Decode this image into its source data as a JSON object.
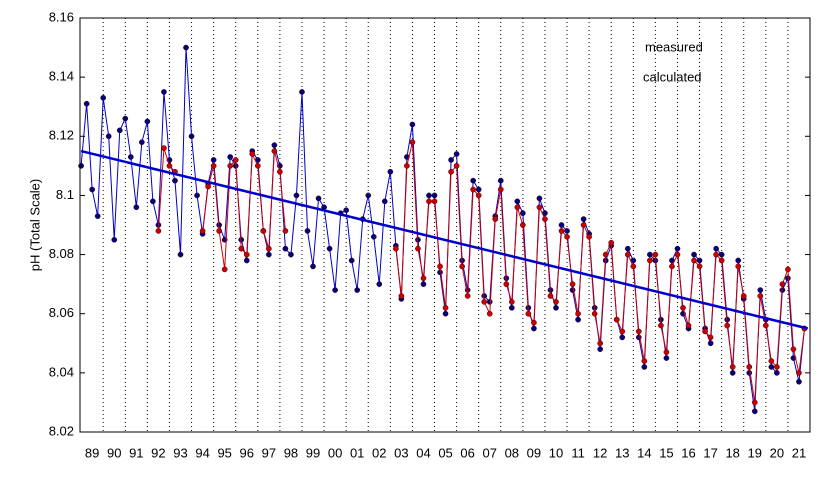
{
  "chart_data": {
    "type": "line",
    "ylabel": "pH (Total Scale)",
    "xlim": [
      1988.95,
      2022.0
    ],
    "ylim": [
      8.02,
      8.16
    ],
    "yticks": [
      8.02,
      8.04,
      8.06,
      8.08,
      8.1,
      8.12,
      8.14,
      8.16
    ],
    "xticks": [
      {
        "value": 1989.5,
        "label": "89"
      },
      {
        "value": 1990.5,
        "label": "90"
      },
      {
        "value": 1991.5,
        "label": "91"
      },
      {
        "value": 1992.5,
        "label": "92"
      },
      {
        "value": 1993.5,
        "label": "93"
      },
      {
        "value": 1994.5,
        "label": "94"
      },
      {
        "value": 1995.5,
        "label": "95"
      },
      {
        "value": 1996.5,
        "label": "96"
      },
      {
        "value": 1997.5,
        "label": "97"
      },
      {
        "value": 1998.5,
        "label": "98"
      },
      {
        "value": 1999.5,
        "label": "99"
      },
      {
        "value": 2000.5,
        "label": "00"
      },
      {
        "value": 2001.5,
        "label": "01"
      },
      {
        "value": 2002.5,
        "label": "02"
      },
      {
        "value": 2003.5,
        "label": "03"
      },
      {
        "value": 2004.5,
        "label": "04"
      },
      {
        "value": 2005.5,
        "label": "05"
      },
      {
        "value": 2006.5,
        "label": "06"
      },
      {
        "value": 2007.5,
        "label": "07"
      },
      {
        "value": 2008.5,
        "label": "08"
      },
      {
        "value": 2009.5,
        "label": "09"
      },
      {
        "value": 2010.5,
        "label": "10"
      },
      {
        "value": 2011.5,
        "label": "11"
      },
      {
        "value": 2012.5,
        "label": "12"
      },
      {
        "value": 2013.5,
        "label": "13"
      },
      {
        "value": 2014.5,
        "label": "14"
      },
      {
        "value": 2015.5,
        "label": "15"
      },
      {
        "value": 2016.5,
        "label": "16"
      },
      {
        "value": 2017.5,
        "label": "17"
      },
      {
        "value": 2018.5,
        "label": "18"
      },
      {
        "value": 2019.5,
        "label": "19"
      },
      {
        "value": 2020.5,
        "label": "20"
      },
      {
        "value": 2021.5,
        "label": "21"
      }
    ],
    "grid": true,
    "x": [
      1989,
      1989.25,
      1989.5,
      1989.75,
      1990,
      1990.25,
      1990.5,
      1990.75,
      1991,
      1991.25,
      1991.5,
      1991.75,
      1992,
      1992.25,
      1992.5,
      1992.75,
      1993,
      1993.25,
      1993.5,
      1993.75,
      1994,
      1994.25,
      1994.5,
      1994.75,
      1995,
      1995.25,
      1995.5,
      1995.75,
      1996,
      1996.25,
      1996.5,
      1996.75,
      1997,
      1997.25,
      1997.5,
      1997.75,
      1998,
      1998.25,
      1998.5,
      1998.75,
      1999,
      1999.25,
      1999.5,
      1999.75,
      2000,
      2000.25,
      2000.5,
      2000.75,
      2001,
      2001.25,
      2001.5,
      2001.75,
      2002,
      2002.25,
      2002.5,
      2002.75,
      2003,
      2003.25,
      2003.5,
      2003.75,
      2004,
      2004.25,
      2004.5,
      2004.75,
      2005,
      2005.25,
      2005.5,
      2005.75,
      2006,
      2006.25,
      2006.5,
      2006.75,
      2007,
      2007.25,
      2007.5,
      2007.75,
      2008,
      2008.25,
      2008.5,
      2008.75,
      2009,
      2009.25,
      2009.5,
      2009.75,
      2010,
      2010.25,
      2010.5,
      2010.75,
      2011,
      2011.25,
      2011.5,
      2011.75,
      2012,
      2012.25,
      2012.5,
      2012.75,
      2013,
      2013.25,
      2013.5,
      2013.75,
      2014,
      2014.25,
      2014.5,
      2014.75,
      2015,
      2015.25,
      2015.5,
      2015.75,
      2016,
      2016.25,
      2016.5,
      2016.75,
      2017,
      2017.25,
      2017.5,
      2017.75,
      2018,
      2018.25,
      2018.5,
      2018.75,
      2019,
      2019.25,
      2019.5,
      2019.75,
      2020,
      2020.25,
      2020.5,
      2020.75,
      2021,
      2021.25,
      2021.5,
      2021.75
    ],
    "series": [
      {
        "name": "calculated",
        "color": "#0000cc",
        "marker": "#000080",
        "values": [
          8.11,
          8.131,
          8.102,
          8.093,
          8.133,
          8.12,
          8.085,
          8.122,
          8.126,
          8.113,
          8.096,
          8.118,
          8.125,
          8.098,
          8.09,
          8.135,
          8.112,
          8.105,
          8.08,
          8.15,
          8.12,
          8.1,
          8.087,
          8.104,
          8.112,
          8.09,
          8.085,
          8.113,
          8.11,
          8.085,
          8.078,
          8.115,
          8.112,
          8.088,
          8.08,
          8.117,
          8.11,
          8.082,
          8.08,
          8.1,
          8.135,
          8.088,
          8.076,
          8.099,
          8.096,
          8.082,
          8.068,
          8.094,
          8.095,
          8.078,
          8.068,
          8.092,
          8.1,
          8.086,
          8.07,
          8.098,
          8.108,
          8.083,
          8.065,
          8.113,
          8.124,
          8.085,
          8.07,
          8.1,
          8.1,
          8.074,
          8.06,
          8.112,
          8.114,
          8.078,
          8.068,
          8.105,
          8.102,
          8.066,
          8.064,
          8.093,
          8.105,
          8.072,
          8.062,
          8.098,
          8.094,
          8.062,
          8.055,
          8.099,
          8.094,
          8.068,
          8.062,
          8.09,
          8.088,
          8.068,
          8.058,
          8.092,
          8.087,
          8.062,
          8.048,
          8.078,
          8.083,
          8.058,
          8.052,
          8.082,
          8.078,
          8.052,
          8.042,
          8.08,
          8.078,
          8.058,
          8.045,
          8.078,
          8.082,
          8.06,
          8.055,
          8.08,
          8.078,
          8.055,
          8.05,
          8.082,
          8.08,
          8.058,
          8.04,
          8.078,
          8.065,
          8.04,
          8.027,
          8.068,
          8.058,
          8.042,
          8.04,
          8.068,
          8.072,
          8.045,
          8.037,
          8.055
        ]
      },
      {
        "name": "measured",
        "color": "#cc0000",
        "marker": "#cc0000",
        "values": [
          null,
          null,
          null,
          null,
          null,
          null,
          null,
          null,
          null,
          null,
          null,
          null,
          null,
          null,
          8.088,
          8.116,
          8.11,
          8.108,
          null,
          null,
          null,
          null,
          8.088,
          8.103,
          8.11,
          8.088,
          8.075,
          8.11,
          8.112,
          8.082,
          8.08,
          8.114,
          8.11,
          8.088,
          8.082,
          8.115,
          8.108,
          8.088,
          null,
          null,
          null,
          null,
          null,
          null,
          null,
          null,
          null,
          null,
          null,
          null,
          null,
          null,
          null,
          null,
          null,
          null,
          null,
          8.082,
          8.066,
          8.11,
          8.118,
          8.082,
          8.072,
          8.098,
          8.098,
          8.076,
          8.062,
          8.108,
          8.11,
          8.076,
          8.066,
          8.102,
          8.1,
          8.064,
          8.06,
          8.092,
          8.102,
          8.07,
          8.064,
          8.096,
          8.09,
          8.06,
          8.057,
          8.096,
          8.092,
          8.066,
          8.064,
          8.088,
          8.086,
          8.07,
          8.06,
          8.09,
          8.086,
          8.06,
          8.05,
          8.08,
          8.084,
          8.058,
          8.054,
          8.08,
          8.076,
          8.054,
          8.044,
          8.078,
          8.08,
          8.056,
          8.047,
          8.076,
          8.08,
          8.062,
          8.056,
          8.078,
          8.076,
          8.054,
          8.052,
          8.08,
          8.078,
          8.056,
          8.042,
          8.076,
          8.066,
          8.042,
          8.03,
          8.066,
          8.056,
          8.044,
          8.042,
          8.07,
          8.075,
          8.048,
          8.04,
          8.055
        ]
      }
    ],
    "trend": {
      "color": "#0000cc",
      "x": [
        1989,
        2021.9
      ],
      "values": [
        8.115,
        8.055
      ]
    }
  }
}
